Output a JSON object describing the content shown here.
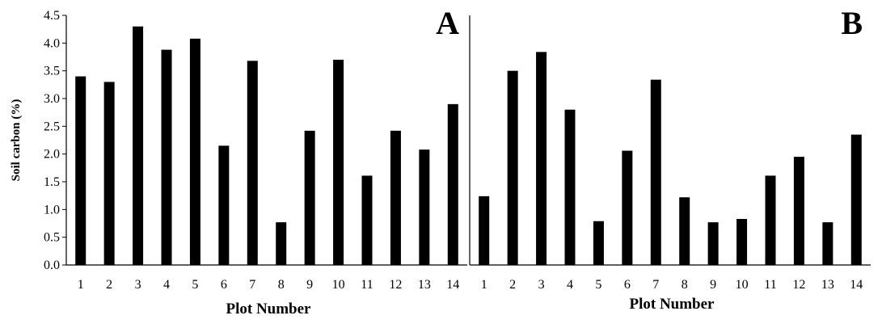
{
  "chart_data": [
    {
      "type": "bar",
      "panel_label": "A",
      "xlabel": "Plot Number",
      "ylabel": "Soil carbon (%)",
      "categories": [
        "1",
        "2",
        "3",
        "4",
        "5",
        "6",
        "7",
        "8",
        "9",
        "10",
        "11",
        "12",
        "13",
        "14"
      ],
      "values": [
        3.4,
        3.3,
        4.3,
        3.88,
        4.08,
        2.15,
        3.68,
        0.77,
        2.42,
        3.7,
        1.61,
        2.42,
        2.08,
        2.9
      ],
      "ylim": [
        0,
        4.5
      ],
      "yticks": [
        "0.0",
        "0.5",
        "1.0",
        "1.5",
        "2.0",
        "2.5",
        "3.0",
        "3.5",
        "4.0",
        "4.5"
      ],
      "bar_color": "#000000",
      "grid": false
    },
    {
      "type": "bar",
      "panel_label": "B",
      "xlabel": "Plot Number",
      "ylabel": "",
      "categories": [
        "1",
        "2",
        "3",
        "4",
        "5",
        "6",
        "7",
        "8",
        "9",
        "10",
        "11",
        "12",
        "13",
        "14"
      ],
      "values": [
        1.24,
        3.5,
        3.84,
        2.8,
        0.79,
        2.06,
        3.34,
        1.22,
        0.77,
        0.83,
        1.61,
        1.95,
        0.77,
        2.35
      ],
      "ylim": [
        0,
        4.5
      ],
      "yticks": [],
      "bar_color": "#000000",
      "grid": false
    }
  ]
}
